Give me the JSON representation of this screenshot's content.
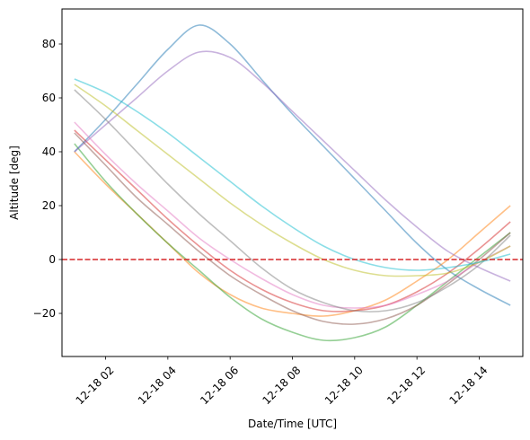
{
  "chart_data": {
    "type": "line",
    "xlabel": "Date/Time [UTC]",
    "ylabel": "Altitude [deg]",
    "xlim": [
      "12-18 00:36",
      "12-18 15:24"
    ],
    "ylim": [
      -36,
      93
    ],
    "x_ticks": [
      "12-18 02",
      "12-18 04",
      "12-18 06",
      "12-18 08",
      "12-18 10",
      "12-18 12",
      "12-18 14"
    ],
    "y_ticks": [
      -20,
      0,
      20,
      40,
      60,
      80
    ],
    "grid": false,
    "reference_line": {
      "y": 0,
      "style": "dashed",
      "color": "#d62728"
    },
    "series": [
      {
        "color": "#1f77b4",
        "points": [
          [
            "12-18 01:00",
            40
          ],
          [
            "12-18 02:00",
            52
          ],
          [
            "12-18 03:00",
            65
          ],
          [
            "12-18 04:00",
            78
          ],
          [
            "12-18 05:00",
            87
          ],
          [
            "12-18 06:00",
            80
          ],
          [
            "12-18 07:00",
            67
          ],
          [
            "12-18 08:00",
            54
          ],
          [
            "12-18 09:00",
            42
          ],
          [
            "12-18 10:00",
            30
          ],
          [
            "12-18 11:00",
            18
          ],
          [
            "12-18 12:00",
            6
          ],
          [
            "12-18 13:00",
            -4
          ],
          [
            "12-18 14:00",
            -11
          ],
          [
            "12-18 15:00",
            -17
          ]
        ]
      },
      {
        "color": "#ff7f0e",
        "points": [
          [
            "12-18 01:00",
            40
          ],
          [
            "12-18 02:00",
            28
          ],
          [
            "12-18 03:00",
            17
          ],
          [
            "12-18 04:00",
            6
          ],
          [
            "12-18 05:00",
            -5
          ],
          [
            "12-18 06:00",
            -13
          ],
          [
            "12-18 07:00",
            -18
          ],
          [
            "12-18 08:00",
            -20
          ],
          [
            "12-18 09:00",
            -21
          ],
          [
            "12-18 10:00",
            -19
          ],
          [
            "12-18 11:00",
            -15
          ],
          [
            "12-18 12:00",
            -8
          ],
          [
            "12-18 13:00",
            0
          ],
          [
            "12-18 14:00",
            10
          ],
          [
            "12-18 15:00",
            20
          ]
        ]
      },
      {
        "color": "#2ca02c",
        "points": [
          [
            "12-18 01:00",
            43
          ],
          [
            "12-18 02:00",
            29
          ],
          [
            "12-18 03:00",
            17
          ],
          [
            "12-18 04:00",
            6
          ],
          [
            "12-18 05:00",
            -4
          ],
          [
            "12-18 06:00",
            -14
          ],
          [
            "12-18 07:00",
            -22
          ],
          [
            "12-18 08:00",
            -27
          ],
          [
            "12-18 09:00",
            -30
          ],
          [
            "12-18 10:00",
            -29
          ],
          [
            "12-18 11:00",
            -25
          ],
          [
            "12-18 12:00",
            -17
          ],
          [
            "12-18 13:00",
            -8
          ],
          [
            "12-18 14:00",
            1
          ],
          [
            "12-18 15:00",
            10
          ]
        ]
      },
      {
        "color": "#d62728",
        "points": [
          [
            "12-18 01:00",
            48
          ],
          [
            "12-18 02:00",
            37
          ],
          [
            "12-18 03:00",
            26
          ],
          [
            "12-18 04:00",
            15
          ],
          [
            "12-18 05:00",
            5
          ],
          [
            "12-18 06:00",
            -4
          ],
          [
            "12-18 07:00",
            -11
          ],
          [
            "12-18 08:00",
            -16
          ],
          [
            "12-18 09:00",
            -19
          ],
          [
            "12-18 10:00",
            -19
          ],
          [
            "12-18 11:00",
            -17
          ],
          [
            "12-18 12:00",
            -12
          ],
          [
            "12-18 13:00",
            -5
          ],
          [
            "12-18 14:00",
            4
          ],
          [
            "12-18 15:00",
            14
          ]
        ]
      },
      {
        "color": "#9467bd",
        "points": [
          [
            "12-18 01:00",
            40
          ],
          [
            "12-18 02:00",
            50
          ],
          [
            "12-18 03:00",
            60
          ],
          [
            "12-18 04:00",
            70
          ],
          [
            "12-18 05:00",
            77
          ],
          [
            "12-18 06:00",
            75
          ],
          [
            "12-18 07:00",
            66
          ],
          [
            "12-18 08:00",
            55
          ],
          [
            "12-18 09:00",
            44
          ],
          [
            "12-18 10:00",
            33
          ],
          [
            "12-18 11:00",
            22
          ],
          [
            "12-18 12:00",
            12
          ],
          [
            "12-18 13:00",
            3
          ],
          [
            "12-18 14:00",
            -3
          ],
          [
            "12-18 15:00",
            -8
          ]
        ]
      },
      {
        "color": "#8c564b",
        "points": [
          [
            "12-18 01:00",
            47
          ],
          [
            "12-18 02:00",
            35
          ],
          [
            "12-18 03:00",
            23
          ],
          [
            "12-18 04:00",
            13
          ],
          [
            "12-18 05:00",
            3
          ],
          [
            "12-18 06:00",
            -6
          ],
          [
            "12-18 07:00",
            -13
          ],
          [
            "12-18 08:00",
            -19
          ],
          [
            "12-18 09:00",
            -23
          ],
          [
            "12-18 10:00",
            -24
          ],
          [
            "12-18 11:00",
            -22
          ],
          [
            "12-18 12:00",
            -17
          ],
          [
            "12-18 13:00",
            -9
          ],
          [
            "12-18 14:00",
            0
          ],
          [
            "12-18 15:00",
            10
          ]
        ]
      },
      {
        "color": "#e377c2",
        "points": [
          [
            "12-18 01:00",
            51
          ],
          [
            "12-18 02:00",
            39
          ],
          [
            "12-18 03:00",
            28
          ],
          [
            "12-18 04:00",
            18
          ],
          [
            "12-18 05:00",
            8
          ],
          [
            "12-18 06:00",
            0
          ],
          [
            "12-18 07:00",
            -7
          ],
          [
            "12-18 08:00",
            -13
          ],
          [
            "12-18 09:00",
            -17
          ],
          [
            "12-18 10:00",
            -18
          ],
          [
            "12-18 11:00",
            -17
          ],
          [
            "12-18 12:00",
            -13
          ],
          [
            "12-18 13:00",
            -8
          ],
          [
            "12-18 14:00",
            -1
          ],
          [
            "12-18 15:00",
            5
          ]
        ]
      },
      {
        "color": "#7f7f7f",
        "points": [
          [
            "12-18 01:00",
            63
          ],
          [
            "12-18 02:00",
            52
          ],
          [
            "12-18 03:00",
            40
          ],
          [
            "12-18 04:00",
            28
          ],
          [
            "12-18 05:00",
            17
          ],
          [
            "12-18 06:00",
            7
          ],
          [
            "12-18 07:00",
            -3
          ],
          [
            "12-18 08:00",
            -11
          ],
          [
            "12-18 09:00",
            -16
          ],
          [
            "12-18 10:00",
            -19
          ],
          [
            "12-18 11:00",
            -19
          ],
          [
            "12-18 12:00",
            -16
          ],
          [
            "12-18 13:00",
            -10
          ],
          [
            "12-18 14:00",
            -2
          ],
          [
            "12-18 15:00",
            9
          ]
        ]
      },
      {
        "color": "#bcbd22",
        "points": [
          [
            "12-18 01:00",
            65
          ],
          [
            "12-18 02:00",
            57
          ],
          [
            "12-18 03:00",
            48
          ],
          [
            "12-18 04:00",
            39
          ],
          [
            "12-18 05:00",
            30
          ],
          [
            "12-18 06:00",
            21
          ],
          [
            "12-18 07:00",
            13
          ],
          [
            "12-18 08:00",
            6
          ],
          [
            "12-18 09:00",
            0
          ],
          [
            "12-18 10:00",
            -4
          ],
          [
            "12-18 11:00",
            -6
          ],
          [
            "12-18 12:00",
            -6
          ],
          [
            "12-18 13:00",
            -5
          ],
          [
            "12-18 14:00",
            -1
          ],
          [
            "12-18 15:00",
            5
          ]
        ]
      },
      {
        "color": "#17becf",
        "points": [
          [
            "12-18 01:00",
            67
          ],
          [
            "12-18 02:00",
            62
          ],
          [
            "12-18 03:00",
            55
          ],
          [
            "12-18 04:00",
            47
          ],
          [
            "12-18 05:00",
            38
          ],
          [
            "12-18 06:00",
            29
          ],
          [
            "12-18 07:00",
            20
          ],
          [
            "12-18 08:00",
            12
          ],
          [
            "12-18 09:00",
            5
          ],
          [
            "12-18 10:00",
            0
          ],
          [
            "12-18 11:00",
            -3
          ],
          [
            "12-18 12:00",
            -4
          ],
          [
            "12-18 13:00",
            -3
          ],
          [
            "12-18 14:00",
            -1
          ],
          [
            "12-18 15:00",
            2
          ]
        ]
      }
    ]
  }
}
